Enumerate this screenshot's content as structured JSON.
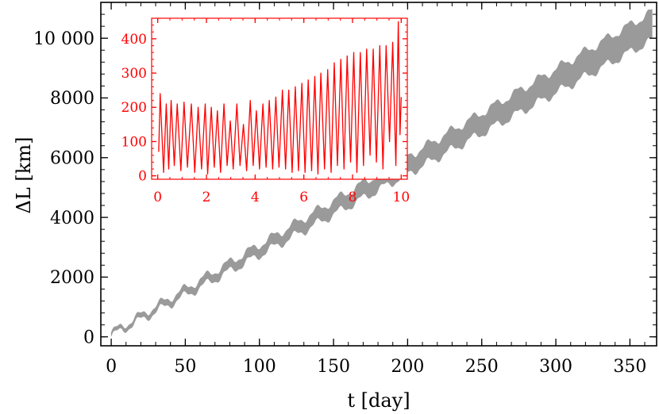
{
  "chart_data": [
    {
      "id": "main",
      "type": "area",
      "xlabel": "t [day]",
      "ylabel": "ΔL [km]",
      "xlim": [
        -7,
        368
      ],
      "ylim": [
        -300,
        11200
      ],
      "xticks": [
        0,
        50,
        100,
        150,
        200,
        250,
        300,
        350
      ],
      "xtick_labels": [
        "0",
        "50",
        "100",
        "150",
        "200",
        "250",
        "300",
        "350"
      ],
      "yticks": [
        0,
        2000,
        4000,
        6000,
        8000,
        10000
      ],
      "ytick_labels": [
        "0",
        "2000",
        "4000",
        "6000",
        "8000",
        "10 000"
      ],
      "x_minor_step": 10,
      "y_minor_step": 400,
      "band": {
        "slope_km_per_day": 28.3,
        "center_offset": 80,
        "width_start": 120,
        "width_end": 940,
        "wobble_amplitude": 140,
        "wobble_period_days": 15,
        "x": [
          0,
          365
        ]
      },
      "color": "#9a9a9a"
    },
    {
      "id": "inset",
      "type": "line",
      "xlim": [
        -0.25,
        10.25
      ],
      "ylim": [
        -10,
        460
      ],
      "xticks": [
        0,
        2,
        4,
        6,
        8,
        10
      ],
      "xtick_labels": [
        "0",
        "2",
        "4",
        "6",
        "8",
        "10"
      ],
      "yticks": [
        0,
        100,
        200,
        300,
        400
      ],
      "ytick_labels": [
        "0",
        "100",
        "200",
        "300",
        "400"
      ],
      "x_minor_step": 0.5,
      "y_minor_step": 20,
      "peaks": [
        [
          0.04,
          70
        ],
        [
          0.1,
          240
        ],
        [
          0.24,
          10
        ],
        [
          0.35,
          210
        ],
        [
          0.45,
          20
        ],
        [
          0.55,
          220
        ],
        [
          0.68,
          30
        ],
        [
          0.8,
          210
        ],
        [
          0.95,
          15
        ],
        [
          1.08,
          215
        ],
        [
          1.22,
          25
        ],
        [
          1.38,
          210
        ],
        [
          1.52,
          10
        ],
        [
          1.66,
          200
        ],
        [
          1.8,
          20
        ],
        [
          1.95,
          210
        ],
        [
          2.05,
          5
        ],
        [
          2.2,
          200
        ],
        [
          2.32,
          25
        ],
        [
          2.45,
          190
        ],
        [
          2.58,
          10
        ],
        [
          2.72,
          210
        ],
        [
          2.85,
          30
        ],
        [
          2.98,
          160
        ],
        [
          3.1,
          20
        ],
        [
          3.25,
          210
        ],
        [
          3.38,
          30
        ],
        [
          3.52,
          150
        ],
        [
          3.65,
          15
        ],
        [
          3.8,
          220
        ],
        [
          3.92,
          30
        ],
        [
          4.05,
          190
        ],
        [
          4.18,
          20
        ],
        [
          4.32,
          210
        ],
        [
          4.45,
          25
        ],
        [
          4.58,
          220
        ],
        [
          4.72,
          20
        ],
        [
          4.85,
          230
        ],
        [
          4.98,
          25
        ],
        [
          5.12,
          250
        ],
        [
          5.25,
          20
        ],
        [
          5.38,
          250
        ],
        [
          5.52,
          10
        ],
        [
          5.65,
          260
        ],
        [
          5.78,
          15
        ],
        [
          5.92,
          270
        ],
        [
          6.05,
          10
        ],
        [
          6.18,
          280
        ],
        [
          6.32,
          15
        ],
        [
          6.45,
          290
        ],
        [
          6.58,
          5
        ],
        [
          6.7,
          300
        ],
        [
          6.85,
          20
        ],
        [
          6.98,
          310
        ],
        [
          7.12,
          10
        ],
        [
          7.25,
          330
        ],
        [
          7.38,
          30
        ],
        [
          7.52,
          340
        ],
        [
          7.65,
          20
        ],
        [
          7.78,
          350
        ],
        [
          7.92,
          40
        ],
        [
          8.05,
          360
        ],
        [
          8.18,
          10
        ],
        [
          8.32,
          360
        ],
        [
          8.45,
          30
        ],
        [
          8.58,
          370
        ],
        [
          8.72,
          60
        ],
        [
          8.85,
          370
        ],
        [
          8.98,
          40
        ],
        [
          9.12,
          380
        ],
        [
          9.25,
          20
        ],
        [
          9.38,
          380
        ],
        [
          9.52,
          100
        ],
        [
          9.65,
          390
        ],
        [
          9.78,
          30
        ],
        [
          9.88,
          450
        ],
        [
          9.95,
          120
        ],
        [
          10.0,
          230
        ]
      ],
      "color": "#ff0000"
    }
  ]
}
